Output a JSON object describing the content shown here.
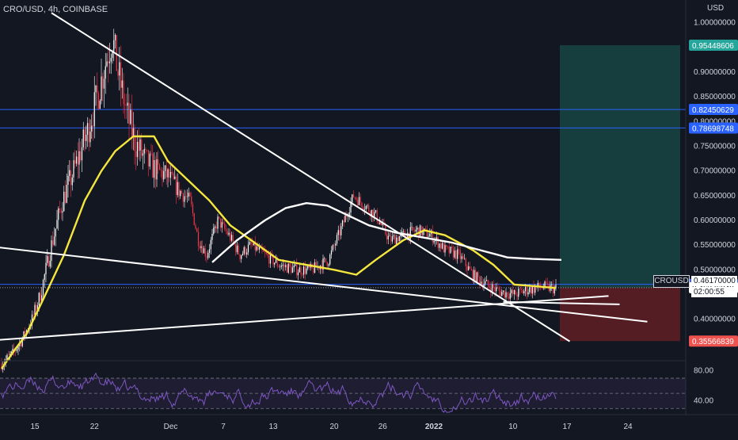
{
  "header": {
    "symbol_line": "CRO/USD, 4h, COINBASE"
  },
  "price_axis": {
    "currency": "USD",
    "ticks": [
      "1.00000000",
      "0.90000000",
      "0.85000000",
      "0.80000000",
      "0.75000000",
      "0.70000000",
      "0.65000000",
      "0.60000000",
      "0.55000000",
      "0.50000000",
      "0.40000000"
    ]
  },
  "rsi_axis": {
    "ticks": [
      "80.00",
      "40.00"
    ]
  },
  "time_axis": {
    "ticks": [
      "15",
      "22",
      "Dec",
      "7",
      "13",
      "20",
      "26",
      "2022",
      "10",
      "17",
      "24"
    ]
  },
  "level_tags": [
    {
      "value": "0.95448606",
      "color": "#26a69a"
    },
    {
      "value": "0.82450629",
      "color": "#2962ff"
    },
    {
      "value": "0.78698748",
      "color": "#2962ff"
    },
    {
      "value": "0.47049833",
      "color": "#2962ff"
    },
    {
      "value": "0.46376849",
      "color": "#ffffff"
    },
    {
      "value": "0.35566839",
      "color": "#ef5350"
    }
  ],
  "current_price": {
    "ticker": "CROUSD",
    "price": "0.46170000",
    "countdown": "02:00:55"
  },
  "colors": {
    "background": "#131722",
    "up": "#ffffff",
    "down": "#f23645",
    "ma_fast": "#f5e63d",
    "ma_slow": "#ffffff",
    "trendline": "#ffffff",
    "hline": "#2962ff",
    "rsi": "#7e57c2",
    "target_zone": "#1b5e56",
    "stop_zone": "#6b1f24"
  },
  "chart_data": {
    "type": "candlestick",
    "price_ylim": [
      0.34,
      1.03
    ],
    "rsi_ylim": [
      25,
      90
    ],
    "horizontal_levels": [
      0.8245,
      0.787,
      0.4705
    ],
    "position": {
      "entry": 0.4638,
      "target": 0.9545,
      "stop": 0.3557
    },
    "ma_fast": [
      [
        0,
        0.3
      ],
      [
        10,
        0.34
      ],
      [
        18,
        0.37
      ],
      [
        30,
        0.44
      ],
      [
        45,
        0.53
      ],
      [
        60,
        0.64
      ],
      [
        72,
        0.7
      ],
      [
        82,
        0.74
      ],
      [
        95,
        0.77
      ],
      [
        110,
        0.77
      ],
      [
        120,
        0.72
      ],
      [
        135,
        0.68
      ],
      [
        150,
        0.64
      ],
      [
        165,
        0.59
      ],
      [
        180,
        0.56
      ],
      [
        200,
        0.52
      ],
      [
        220,
        0.51
      ],
      [
        240,
        0.5
      ],
      [
        256,
        0.49
      ],
      [
        270,
        0.52
      ],
      [
        290,
        0.56
      ],
      [
        305,
        0.58
      ],
      [
        320,
        0.57
      ],
      [
        340,
        0.54
      ],
      [
        355,
        0.51
      ],
      [
        370,
        0.47
      ],
      [
        385,
        0.467
      ],
      [
        400,
        0.463
      ]
    ],
    "ma_slow": [
      [
        152,
        0.515
      ],
      [
        170,
        0.56
      ],
      [
        190,
        0.6
      ],
      [
        205,
        0.625
      ],
      [
        220,
        0.635
      ],
      [
        235,
        0.63
      ],
      [
        250,
        0.61
      ],
      [
        265,
        0.59
      ],
      [
        285,
        0.575
      ],
      [
        305,
        0.565
      ],
      [
        325,
        0.555
      ],
      [
        345,
        0.54
      ],
      [
        365,
        0.525
      ],
      [
        383,
        0.522
      ],
      [
        404,
        0.52
      ]
    ],
    "trendlines": [
      {
        "x1": 36,
        "y1": 1.02,
        "x2": 410,
        "y2": 0.355
      },
      {
        "x1": -17,
        "y1": 0.55,
        "x2": 466,
        "y2": 0.395
      },
      {
        "x1": -17,
        "y1": 0.355,
        "x2": 438,
        "y2": 0.447
      },
      {
        "x1": 362,
        "y1": 0.435,
        "x2": 446,
        "y2": 0.43
      }
    ]
  }
}
